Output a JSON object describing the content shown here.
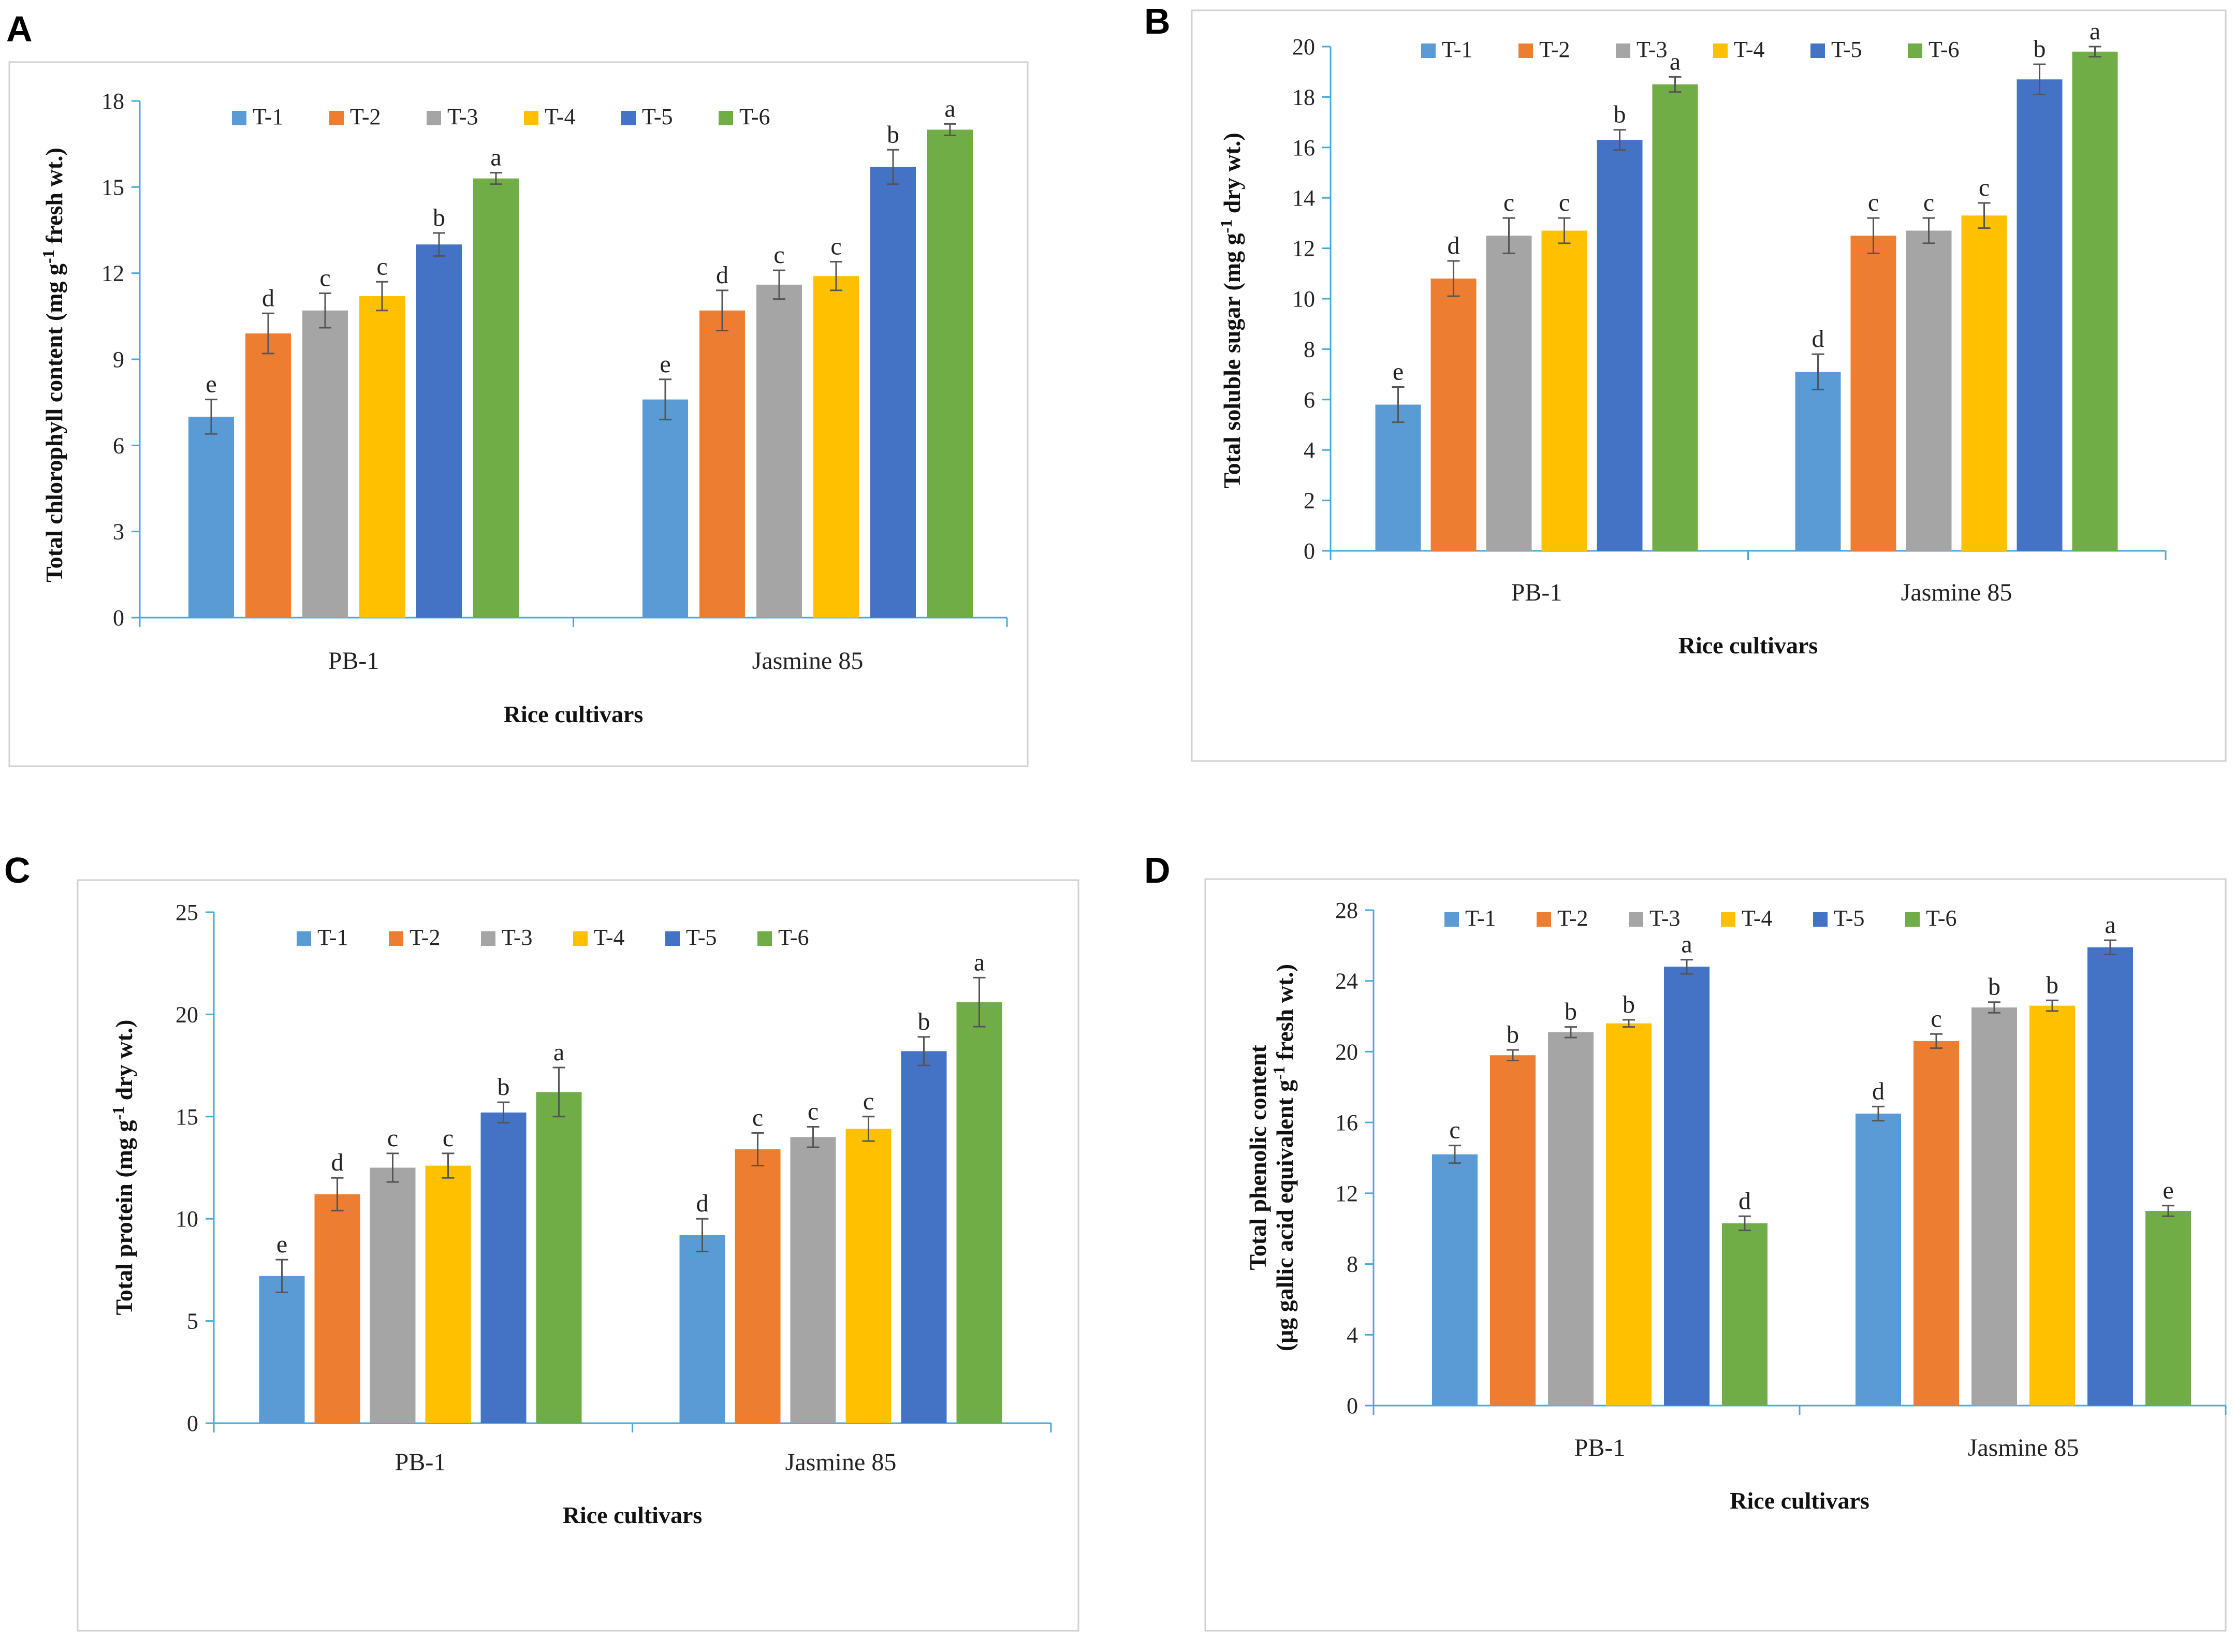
{
  "colors": {
    "T-1": "#5B9BD5",
    "T-2": "#ED7D31",
    "T-3": "#A5A5A5",
    "T-4": "#FFC000",
    "T-5": "#4472C4",
    "T-6": "#70AD47",
    "axis": "#44AADD",
    "frame": "#D0D0D0",
    "errorbar": "#555555"
  },
  "chart_data": [
    {
      "panel": "A",
      "type": "bar",
      "categories": [
        "PB-1",
        "Jasmine 85"
      ],
      "series": [
        {
          "name": "T-1",
          "values": [
            7.0,
            7.6
          ],
          "errors": [
            0.6,
            0.7
          ],
          "letters": [
            "e",
            "e"
          ]
        },
        {
          "name": "T-2",
          "values": [
            9.9,
            10.7
          ],
          "errors": [
            0.7,
            0.7
          ],
          "letters": [
            "d",
            "d"
          ]
        },
        {
          "name": "T-3",
          "values": [
            10.7,
            11.6
          ],
          "errors": [
            0.6,
            0.5
          ],
          "letters": [
            "c",
            "c"
          ]
        },
        {
          "name": "T-4",
          "values": [
            11.2,
            11.9
          ],
          "errors": [
            0.5,
            0.5
          ],
          "letters": [
            "c",
            "c"
          ]
        },
        {
          "name": "T-5",
          "values": [
            13.0,
            15.7
          ],
          "errors": [
            0.4,
            0.6
          ],
          "letters": [
            "b",
            "b"
          ]
        },
        {
          "name": "T-6",
          "values": [
            15.3,
            17.0
          ],
          "errors": [
            0.2,
            0.2
          ],
          "letters": [
            "a",
            "a"
          ]
        }
      ],
      "ylabel": "Total chlorophyll content (mg g-1 fresh wt.)",
      "xlabel": "Rice cultivars",
      "ylim": [
        0,
        18
      ],
      "yticks": [
        0,
        3,
        6,
        9,
        12,
        15,
        18
      ]
    },
    {
      "panel": "B",
      "type": "bar",
      "categories": [
        "PB-1",
        "Jasmine 85"
      ],
      "series": [
        {
          "name": "T-1",
          "values": [
            5.8,
            7.1
          ],
          "errors": [
            0.7,
            0.7
          ],
          "letters": [
            "e",
            "d"
          ]
        },
        {
          "name": "T-2",
          "values": [
            10.8,
            12.5
          ],
          "errors": [
            0.7,
            0.7
          ],
          "letters": [
            "d",
            "c"
          ]
        },
        {
          "name": "T-3",
          "values": [
            12.5,
            12.7
          ],
          "errors": [
            0.7,
            0.5
          ],
          "letters": [
            "c",
            "c"
          ]
        },
        {
          "name": "T-4",
          "values": [
            12.7,
            13.3
          ],
          "errors": [
            0.5,
            0.5
          ],
          "letters": [
            "c",
            "c"
          ]
        },
        {
          "name": "T-5",
          "values": [
            16.3,
            18.7
          ],
          "errors": [
            0.4,
            0.6
          ],
          "letters": [
            "b",
            "b"
          ]
        },
        {
          "name": "T-6",
          "values": [
            18.5,
            19.8
          ],
          "errors": [
            0.3,
            0.2
          ],
          "letters": [
            "a",
            "a"
          ]
        }
      ],
      "ylabel": "Total soluble sugar (mg g-1 dry wt.)",
      "xlabel": "Rice cultivars",
      "ylim": [
        0,
        20
      ],
      "yticks": [
        0,
        2,
        4,
        6,
        8,
        10,
        12,
        14,
        16,
        18,
        20
      ]
    },
    {
      "panel": "C",
      "type": "bar",
      "categories": [
        "PB-1",
        "Jasmine 85"
      ],
      "series": [
        {
          "name": "T-1",
          "values": [
            7.2,
            9.2
          ],
          "errors": [
            0.8,
            0.8
          ],
          "letters": [
            "e",
            "d"
          ]
        },
        {
          "name": "T-2",
          "values": [
            11.2,
            13.4
          ],
          "errors": [
            0.8,
            0.8
          ],
          "letters": [
            "d",
            "c"
          ]
        },
        {
          "name": "T-3",
          "values": [
            12.5,
            14.0
          ],
          "errors": [
            0.7,
            0.5
          ],
          "letters": [
            "c",
            "c"
          ]
        },
        {
          "name": "T-4",
          "values": [
            12.6,
            14.4
          ],
          "errors": [
            0.6,
            0.6
          ],
          "letters": [
            "c",
            "c"
          ]
        },
        {
          "name": "T-5",
          "values": [
            15.2,
            18.2
          ],
          "errors": [
            0.5,
            0.7
          ],
          "letters": [
            "b",
            "b"
          ]
        },
        {
          "name": "T-6",
          "values": [
            16.2,
            20.6
          ],
          "errors": [
            1.2,
            1.2
          ],
          "letters": [
            "a",
            "a"
          ]
        }
      ],
      "ylabel": "Total protein (mg g-1 dry wt.)",
      "xlabel": "Rice cultivars",
      "ylim": [
        0,
        25
      ],
      "yticks": [
        0,
        5,
        10,
        15,
        20,
        25
      ]
    },
    {
      "panel": "D",
      "type": "bar",
      "categories": [
        "PB-1",
        "Jasmine 85"
      ],
      "series": [
        {
          "name": "T-1",
          "values": [
            14.2,
            16.5
          ],
          "errors": [
            0.5,
            0.4
          ],
          "letters": [
            "c",
            "d"
          ]
        },
        {
          "name": "T-2",
          "values": [
            19.8,
            20.6
          ],
          "errors": [
            0.3,
            0.4
          ],
          "letters": [
            "b",
            "c"
          ]
        },
        {
          "name": "T-3",
          "values": [
            21.1,
            22.5
          ],
          "errors": [
            0.3,
            0.3
          ],
          "letters": [
            "b",
            "b"
          ]
        },
        {
          "name": "T-4",
          "values": [
            21.6,
            22.6
          ],
          "errors": [
            0.2,
            0.3
          ],
          "letters": [
            "b",
            "b"
          ]
        },
        {
          "name": "T-5",
          "values": [
            24.8,
            25.9
          ],
          "errors": [
            0.4,
            0.4
          ],
          "letters": [
            "a",
            "a"
          ]
        },
        {
          "name": "T-6",
          "values": [
            10.3,
            11.0
          ],
          "errors": [
            0.4,
            0.3
          ],
          "letters": [
            "d",
            "e"
          ]
        }
      ],
      "ylabel_lines": [
        "Total phenolic content",
        "(μg gallic acid equivalent g-1 fresh wt.)"
      ],
      "xlabel": "Rice cultivars",
      "ylim": [
        0,
        28
      ],
      "yticks": [
        0,
        4,
        8,
        12,
        16,
        20,
        24,
        28
      ]
    }
  ]
}
